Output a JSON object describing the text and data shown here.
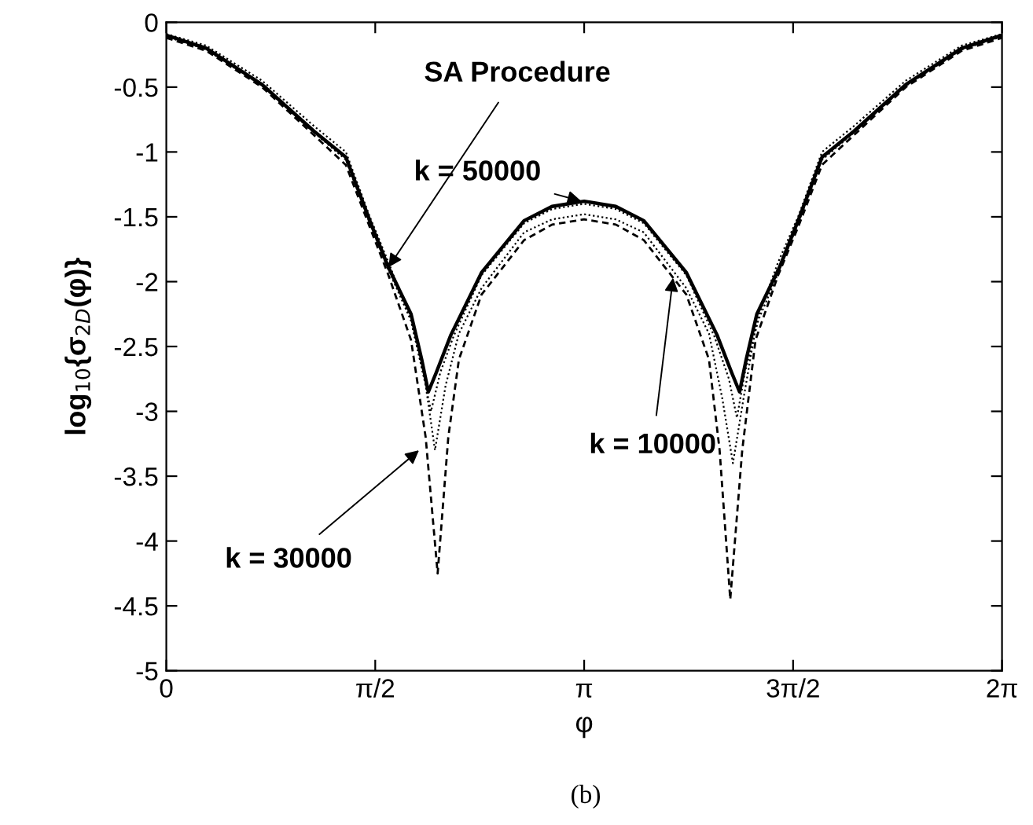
{
  "chart_data": {
    "type": "line",
    "xlabel": "φ",
    "ylabel": "log$_{10}${σ$_{2D}$(φ)}",
    "xlim": [
      0,
      6.2832
    ],
    "ylim": [
      -5,
      0
    ],
    "xticks": [
      {
        "value": 0,
        "label": "0"
      },
      {
        "value": 1.5708,
        "label": "π/2"
      },
      {
        "value": 3.1416,
        "label": "π"
      },
      {
        "value": 4.7124,
        "label": "3π/2"
      },
      {
        "value": 6.2832,
        "label": "2π"
      }
    ],
    "yticks": [
      0,
      -0.5,
      -1,
      -1.5,
      -2,
      -2.5,
      -3,
      -3.5,
      -4,
      -4.5,
      -5
    ],
    "grid": false,
    "series": [
      {
        "color": "#000000",
        "line_style": "solid",
        "x": [
          0,
          0.3,
          0.72,
          1.11,
          1.35,
          1.53,
          1.67,
          1.84,
          1.92,
          1.97,
          2.03,
          2.14,
          2.37,
          2.69,
          2.9,
          3.1416,
          3.38,
          3.59,
          3.91,
          4.14,
          4.25,
          4.31,
          4.36,
          4.44,
          4.61,
          4.75,
          4.93,
          5.17,
          5.56,
          5.98,
          6.2832
        ],
        "values": [
          -0.1,
          -0.2,
          -0.48,
          -0.84,
          -1.04,
          -1.53,
          -1.89,
          -2.25,
          -2.6,
          -2.85,
          -2.7,
          -2.41,
          -1.93,
          -1.53,
          -1.42,
          -1.38,
          -1.42,
          -1.53,
          -1.93,
          -2.41,
          -2.7,
          -2.85,
          -2.6,
          -2.25,
          -1.89,
          -1.53,
          -1.04,
          -0.84,
          -0.48,
          -0.2,
          -0.1
        ]
      },
      {
        "color": "#000000",
        "line_style": "dashed",
        "x": [
          0,
          0.3,
          0.72,
          1.11,
          1.35,
          1.53,
          1.67,
          1.84,
          1.95,
          2.04,
          2.12,
          2.2,
          2.37,
          2.69,
          2.9,
          3.1416,
          3.38,
          3.59,
          3.91,
          4.08,
          4.16,
          4.24,
          4.33,
          4.43,
          4.6,
          4.75,
          4.93,
          5.17,
          5.56,
          5.98,
          6.2832
        ],
        "values": [
          -0.12,
          -0.22,
          -0.5,
          -0.87,
          -1.1,
          -1.58,
          -1.95,
          -2.45,
          -3.2,
          -4.25,
          -3.2,
          -2.6,
          -2.1,
          -1.68,
          -1.56,
          -1.52,
          -1.56,
          -1.68,
          -2.1,
          -2.6,
          -3.3,
          -4.45,
          -3.3,
          -2.45,
          -1.95,
          -1.58,
          -1.1,
          -0.87,
          -0.5,
          -0.22,
          -0.12
        ]
      },
      {
        "color": "#000000",
        "line_style": "dotted",
        "x": [
          0,
          0.3,
          0.72,
          1.11,
          1.35,
          1.53,
          1.67,
          1.84,
          1.95,
          2.02,
          2.1,
          2.2,
          2.37,
          2.69,
          2.9,
          3.1416,
          3.38,
          3.59,
          3.91,
          4.08,
          4.18,
          4.26,
          4.34,
          4.44,
          4.6,
          4.75,
          4.93,
          5.17,
          5.56,
          5.98,
          6.2832
        ],
        "values": [
          -0.09,
          -0.18,
          -0.45,
          -0.8,
          -1.0,
          -1.5,
          -1.85,
          -2.3,
          -2.8,
          -3.3,
          -2.8,
          -2.4,
          -2.05,
          -1.62,
          -1.52,
          -1.48,
          -1.52,
          -1.62,
          -2.05,
          -2.4,
          -2.9,
          -3.4,
          -2.9,
          -2.3,
          -1.85,
          -1.5,
          -1.0,
          -0.8,
          -0.45,
          -0.18,
          -0.09
        ]
      },
      {
        "color": "#000000",
        "line_style": "dotted",
        "x": [
          0,
          0.3,
          0.72,
          1.11,
          1.35,
          1.53,
          1.67,
          1.84,
          1.93,
          1.99,
          2.06,
          2.16,
          2.37,
          2.69,
          2.9,
          3.1416,
          3.38,
          3.59,
          3.91,
          4.12,
          4.23,
          4.29,
          4.35,
          4.45,
          4.61,
          4.75,
          4.93,
          5.17,
          5.56,
          5.98,
          6.2832
        ],
        "values": [
          -0.11,
          -0.21,
          -0.49,
          -0.85,
          -1.06,
          -1.55,
          -1.91,
          -2.3,
          -2.7,
          -3.0,
          -2.7,
          -2.42,
          -1.95,
          -1.55,
          -1.44,
          -1.4,
          -1.44,
          -1.55,
          -1.95,
          -2.42,
          -2.75,
          -3.05,
          -2.7,
          -2.3,
          -1.91,
          -1.55,
          -1.06,
          -0.85,
          -0.49,
          -0.21,
          -0.11
        ]
      }
    ],
    "annotations": [
      {
        "text": "SA Procedure",
        "x": 1.67,
        "y": -1.89
      },
      {
        "text": "k = 50000",
        "x": 3.12,
        "y": -1.38
      },
      {
        "text": "k = 30000",
        "x": 1.9,
        "y": -3.3
      },
      {
        "text": "k = 10000",
        "x": 3.81,
        "y": -1.97
      },
      "(b)"
    ]
  }
}
